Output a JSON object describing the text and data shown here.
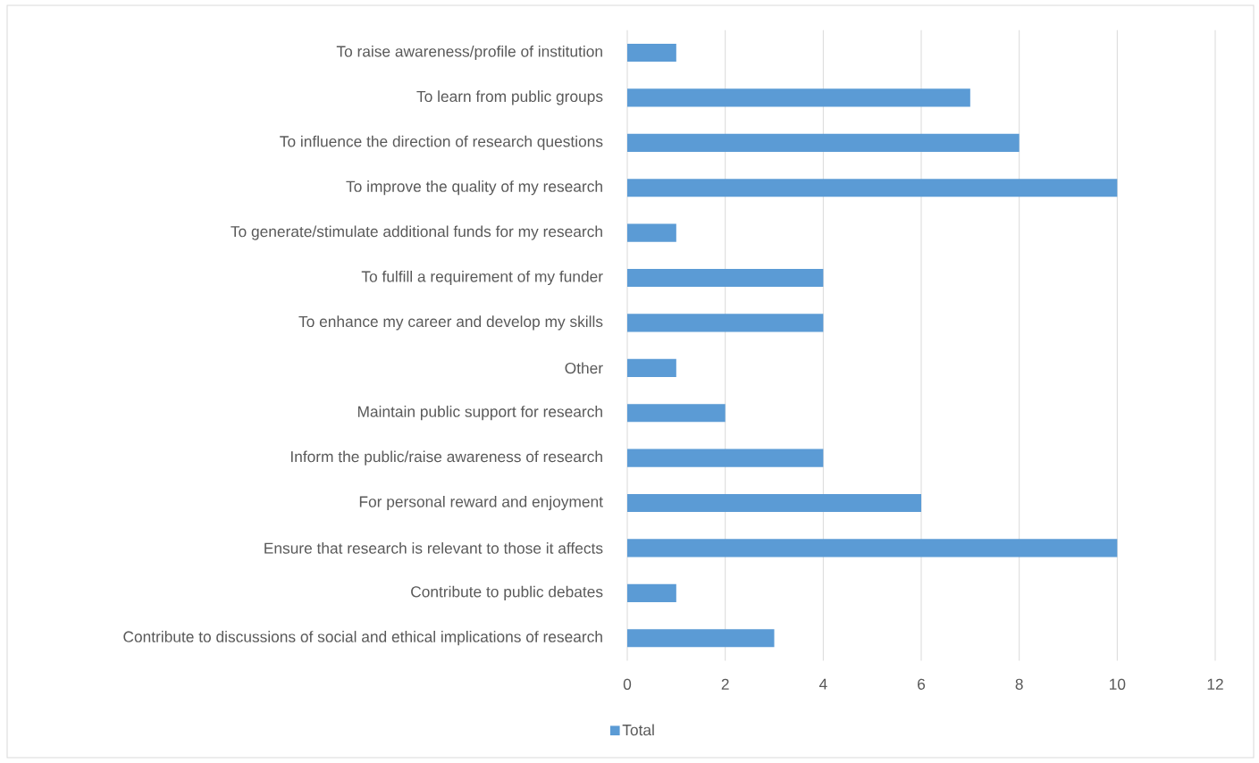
{
  "chart_data": {
    "type": "bar",
    "orientation": "horizontal",
    "categories": [
      "To raise awareness/profile of institution",
      "To learn from public groups",
      "To influence the direction of research questions",
      "To improve the quality of my research",
      "To generate/stimulate additional funds for my research",
      "To fulfill a requirement of my funder",
      "To enhance my career and develop my skills",
      "Other",
      "Maintain public support for research",
      "Inform the public/raise awareness of research",
      "For personal reward and enjoyment",
      "Ensure that research is relevant to those it affects",
      "Contribute to public debates",
      "Contribute to discussions of social and ethical implications of research"
    ],
    "series": [
      {
        "name": "Total",
        "color": "#5b9bd5",
        "values": [
          1,
          7,
          8,
          10,
          1,
          4,
          4,
          1,
          2,
          4,
          6,
          10,
          1,
          3
        ]
      }
    ],
    "xlim": [
      0,
      12
    ],
    "xticks": [
      0,
      2,
      4,
      6,
      8,
      10,
      12
    ],
    "grid": "x",
    "legend": "bottom"
  }
}
